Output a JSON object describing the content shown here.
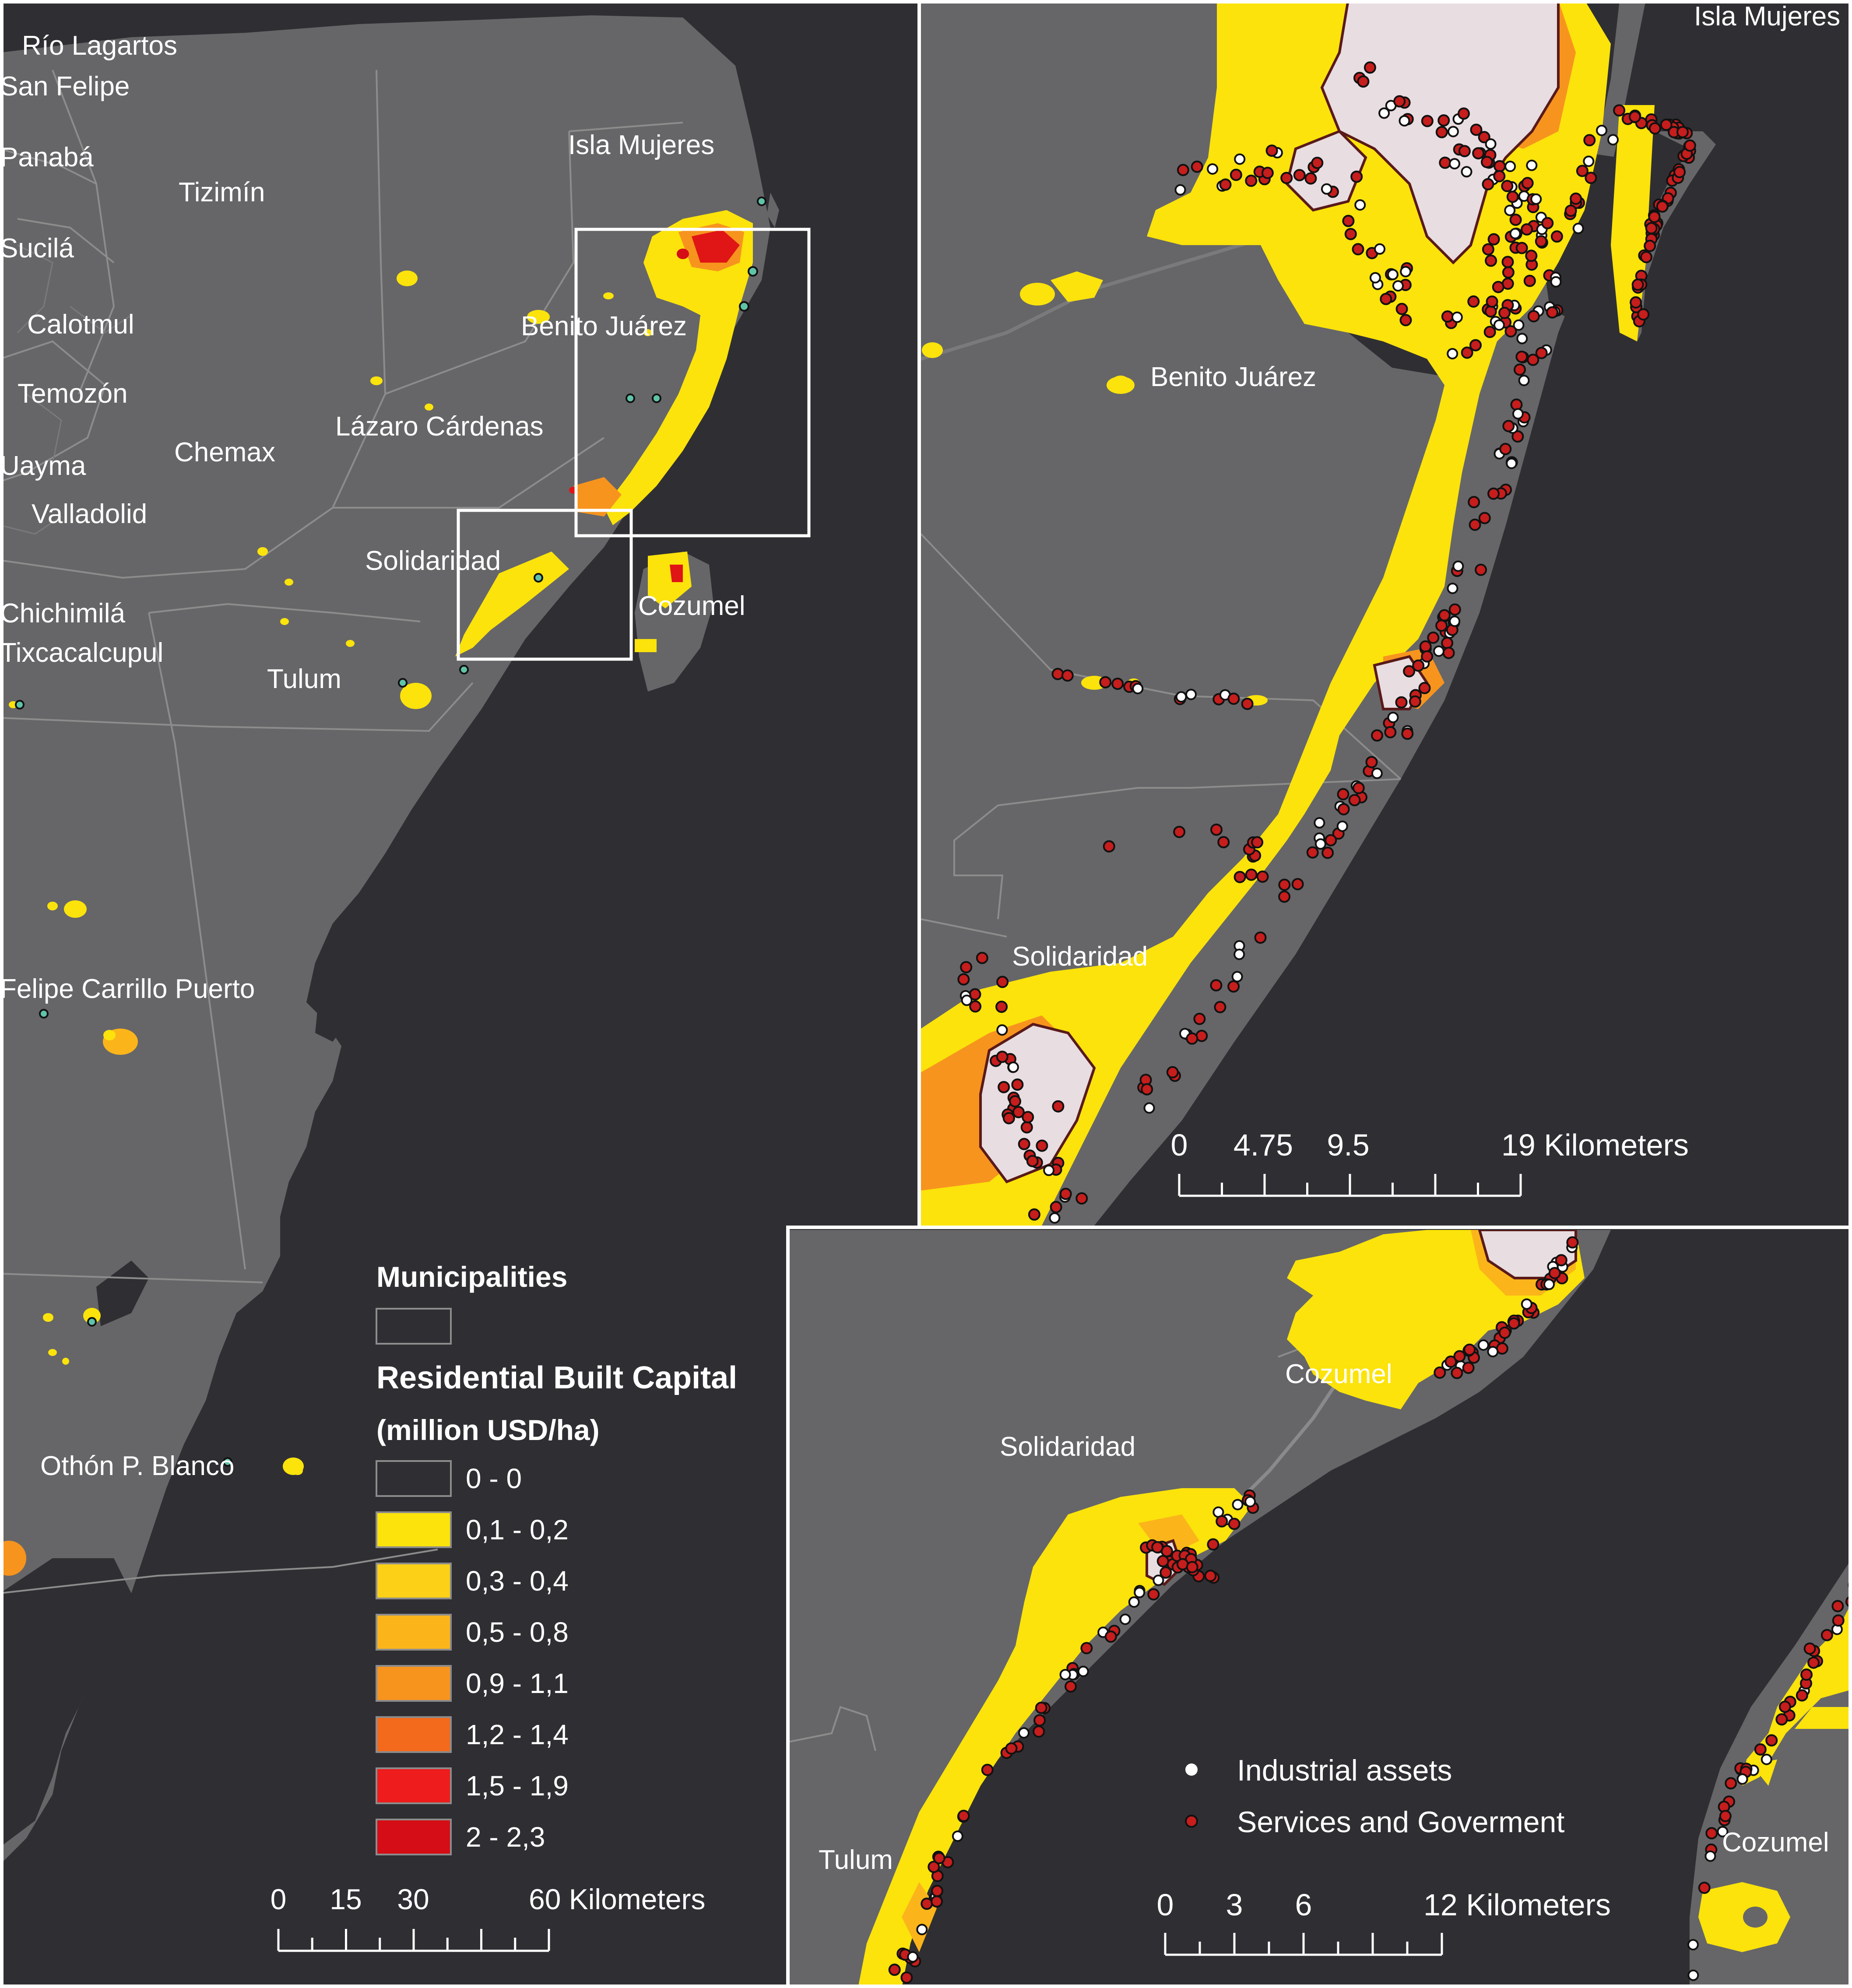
{
  "overview": {
    "labels": [
      {
        "id": "rio-lagartos",
        "text": "Río Lagartos"
      },
      {
        "id": "san-felipe",
        "text": "San Felipe"
      },
      {
        "id": "panaba",
        "text": "Panabá"
      },
      {
        "id": "tizimin",
        "text": "Tizimín"
      },
      {
        "id": "sucila",
        "text": "Sucilá"
      },
      {
        "id": "calotmul",
        "text": "Calotmul"
      },
      {
        "id": "temozon",
        "text": "Temozón"
      },
      {
        "id": "uayma",
        "text": "Uayma"
      },
      {
        "id": "valladolid",
        "text": "Valladolid"
      },
      {
        "id": "chemax",
        "text": "Chemax"
      },
      {
        "id": "lazaro-cardenas",
        "text": "Lázaro Cárdenas"
      },
      {
        "id": "isla-mujeres",
        "text": "Isla Mujeres"
      },
      {
        "id": "benito-juarez",
        "text": "Benito Juárez"
      },
      {
        "id": "solidaridad",
        "text": "Solidaridad"
      },
      {
        "id": "cozumel",
        "text": "Cozumel"
      },
      {
        "id": "chichimila",
        "text": "Chichimilá"
      },
      {
        "id": "tixcacalcupul",
        "text": "Tixcacalcupul"
      },
      {
        "id": "tulum",
        "text": "Tulum"
      },
      {
        "id": "felipe-carrillo-puerto",
        "text": "Felipe Carrillo Puerto"
      },
      {
        "id": "othon-p-blanco",
        "text": "Othón P. Blanco"
      }
    ],
    "legend": {
      "municipalities_title": "Municipalities",
      "capital_title": "Residential Built Capital",
      "capital_unit": "(million USD/ha)",
      "classes": [
        {
          "label": "0 - 0",
          "color": "#2f2f33"
        },
        {
          "label": "0,1 - 0,2",
          "color": "#fbe30b"
        },
        {
          "label": "0,3 - 0,4",
          "color": "#fbd016"
        },
        {
          "label": "0,5 - 0,8",
          "color": "#fbb51b"
        },
        {
          "label": "0,9 - 1,1",
          "color": "#f7941e"
        },
        {
          "label": "1,2 - 1,4",
          "color": "#f36a1c"
        },
        {
          "label": "1,5 - 1,9",
          "color": "#ee1c1c"
        },
        {
          "label": "2 - 2,3",
          "color": "#d50d16"
        }
      ]
    },
    "scale": {
      "ticks": [
        "0",
        "15",
        "30"
      ],
      "end": "60 Kilometers"
    }
  },
  "inset_north": {
    "labels": [
      {
        "id": "isla-mujeres",
        "text": "Isla Mujeres"
      },
      {
        "id": "benito-juarez",
        "text": "Benito Juárez"
      },
      {
        "id": "solidaridad",
        "text": "Solidaridad"
      }
    ],
    "scale": {
      "ticks": [
        "0",
        "4.75",
        "9.5"
      ],
      "end": "19 Kilometers"
    }
  },
  "inset_south": {
    "labels": [
      {
        "id": "cozumel-north",
        "text": "Cozumel"
      },
      {
        "id": "solidaridad",
        "text": "Solidaridad"
      },
      {
        "id": "tulum",
        "text": "Tulum"
      },
      {
        "id": "cozumel-south",
        "text": "Cozumel"
      }
    ],
    "legend": [
      {
        "label": "Industrial assets",
        "color": "#ffffff"
      },
      {
        "label": "Services and Goverment",
        "color": "#c61d1d"
      }
    ],
    "scale": {
      "ticks": [
        "0",
        "3",
        "6"
      ],
      "end": "12 Kilometers"
    }
  },
  "colors": {
    "land": "#666668",
    "sea": "#2f2f33",
    "border": "#8c8c8c",
    "yellow": "#fbe30b",
    "orange": "#f7941e",
    "red": "#e01515",
    "urban": "#e8dde0",
    "service": "#c61d1d"
  }
}
